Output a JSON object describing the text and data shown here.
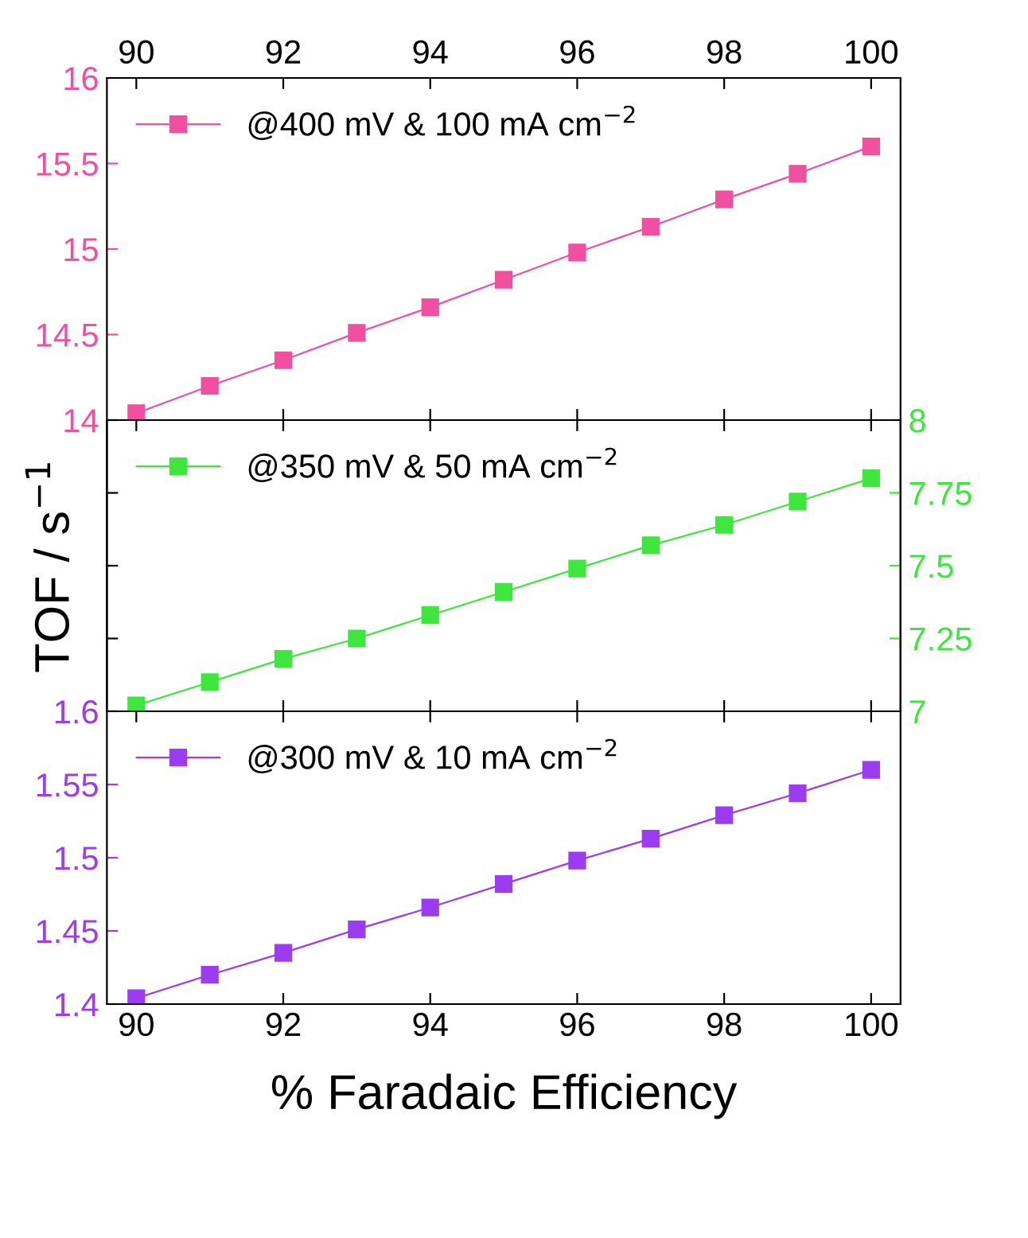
{
  "chart_data": [
    {
      "type": "line",
      "xlim": [
        89.6,
        100.4
      ],
      "xticks": [
        90,
        92,
        94,
        96,
        98,
        100
      ],
      "ylim": [
        14,
        16
      ],
      "yticks": [
        14,
        14.5,
        15,
        15.5,
        16
      ],
      "marker": "square",
      "legend": "top left",
      "grid": false,
      "series": [
        {
          "name": "@400 mV & 100 mA cm$^{−2}$",
          "color": "#f0509f",
          "x": [
            90,
            91,
            92,
            93,
            94,
            95,
            96,
            97,
            98,
            99,
            100
          ],
          "values": [
            14.04,
            14.2,
            14.35,
            14.51,
            14.66,
            14.82,
            14.98,
            15.13,
            15.29,
            15.44,
            15.6
          ]
        }
      ]
    },
    {
      "type": "line",
      "xlim": [
        89.6,
        100.4
      ],
      "xticks": [
        90,
        92,
        94,
        96,
        98,
        100
      ],
      "y2lim": [
        7,
        8
      ],
      "y2ticks": [
        7,
        7.25,
        7.5,
        7.75,
        8
      ],
      "ylabel": "TOF / s$^{−1}$",
      "tick_labels": "y",
      "marker": "square",
      "legend": "top left",
      "grid": false,
      "series": [
        {
          "name": "@350 mV & 50 mA cm$^{−2}$",
          "color": "#3ee63e",
          "axis": "y2",
          "x": [
            90,
            91,
            92,
            93,
            94,
            95,
            96,
            97,
            98,
            99,
            100
          ],
          "values": [
            7.02,
            7.1,
            7.18,
            7.25,
            7.33,
            7.41,
            7.49,
            7.57,
            7.64,
            7.72,
            7.8
          ]
        }
      ]
    },
    {
      "type": "line",
      "xlim": [
        89.6,
        100.4
      ],
      "xticks": [
        90,
        92,
        94,
        96,
        98,
        100
      ],
      "ylim": [
        1.4,
        1.6
      ],
      "yticks": [
        1.4,
        1.45,
        1.5,
        1.55,
        1.6
      ],
      "xlabel": "% Faradaic Efficiency",
      "marker": "square",
      "legend": "top left",
      "grid": false,
      "series": [
        {
          "name": "@300 mV & 10 mA cm$^{−2}$",
          "color": "#9c3cf0",
          "x": [
            90,
            91,
            92,
            93,
            94,
            95,
            96,
            97,
            98,
            99,
            100
          ],
          "values": [
            1.404,
            1.42,
            1.435,
            1.451,
            1.466,
            1.482,
            1.498,
            1.513,
            1.529,
            1.544,
            1.56
          ]
        }
      ]
    }
  ]
}
